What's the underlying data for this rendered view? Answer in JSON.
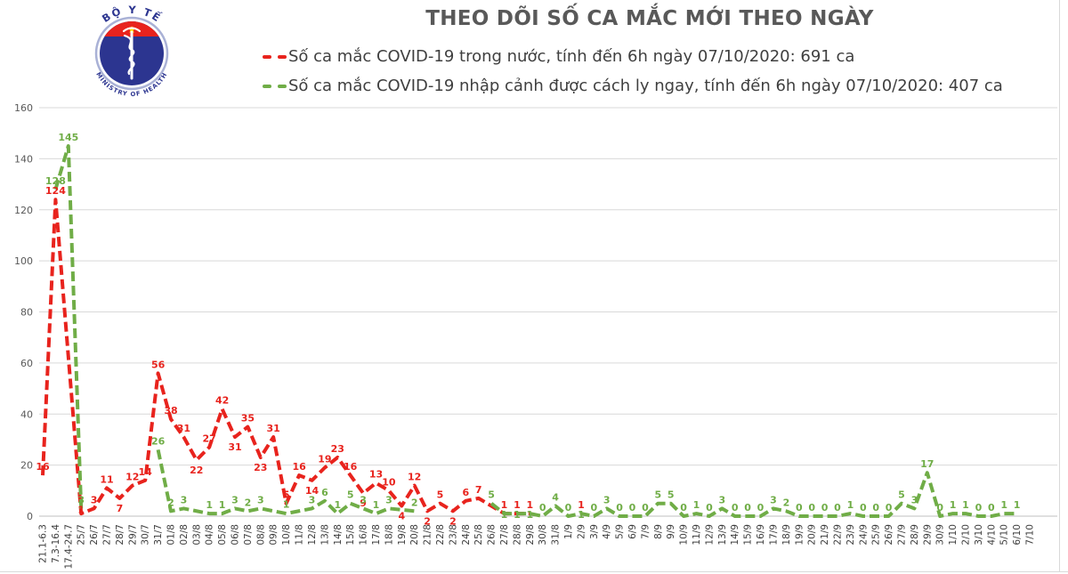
{
  "logo": {
    "top_text": "BỘ Y TẾ",
    "bottom_text": "MINISTRY OF HEALTH",
    "disc_color": "#2c3590",
    "band_color": "#e8231d",
    "star_color": "#ffde00"
  },
  "legend": {
    "items": [
      {
        "label": "Số ca mắc COVID-19 trong nước, tính đến 6h ngày 07/10/2020: 691 ca",
        "color": "#e8231d"
      },
      {
        "label": "Số ca mắc COVID-19 nhập cảnh được cách ly ngay, tính đến 6h ngày 07/10/2020: 407 ca",
        "color": "#70ad47"
      }
    ]
  },
  "chart_data": {
    "type": "line",
    "title": "THEO DÕI SỐ CA MẮC MỚI THEO NGÀY",
    "xlabel": "",
    "ylabel": "",
    "ylim": [
      0,
      160
    ],
    "y_ticks": [
      0,
      20,
      40,
      60,
      80,
      100,
      120,
      140,
      160
    ],
    "grid": true,
    "legend_position": "top-left",
    "line_style": "dashed",
    "categories": [
      "21.1-6.3",
      "7.3-16.4",
      "17.4-24.7",
      "25/7",
      "26/7",
      "27/7",
      "28/7",
      "29/7",
      "30/7",
      "31/7",
      "01/8",
      "02/8",
      "03/8",
      "04/8",
      "05/8",
      "06/8",
      "07/8",
      "08/8",
      "09/8",
      "10/8",
      "11/8",
      "12/8",
      "13/8",
      "14/8",
      "15/8",
      "16/8",
      "17/8",
      "18/8",
      "19/8",
      "20/8",
      "21/8",
      "22/8",
      "23/8",
      "24/8",
      "25/8",
      "26/8",
      "27/8",
      "28/8",
      "29/8",
      "30/8",
      "31/8",
      "1/9",
      "2/9",
      "3/9",
      "4/9",
      "5/9",
      "6/9",
      "7/9",
      "8/9",
      "9/9",
      "10/9",
      "11/9",
      "12/9",
      "13/9",
      "14/9",
      "15/9",
      "16/9",
      "17/9",
      "18/9",
      "19/9",
      "20/9",
      "21/9",
      "22/9",
      "23/9",
      "24/9",
      "25/9",
      "26/9",
      "27/9",
      "28/9",
      "29/9",
      "30/9",
      "1/10",
      "2/10",
      "3/10",
      "4/10",
      "5/10",
      "6/10",
      "7/10"
    ],
    "series": [
      {
        "id": "domestic",
        "name": "Số ca mắc COVID-19 trong nước",
        "total_label": "691 ca",
        "color": "#e8231d",
        "values": [
          16,
          124,
          null,
          1,
          3,
          11,
          7,
          12,
          14,
          56,
          38,
          31,
          22,
          27,
          42,
          31,
          35,
          23,
          31,
          5,
          16,
          14,
          19,
          23,
          16,
          9,
          13,
          10,
          4,
          12,
          2,
          5,
          2,
          6,
          7,
          null,
          1,
          1,
          1,
          null,
          null,
          null,
          1,
          null,
          null,
          null,
          null,
          null,
          null,
          null,
          null,
          null,
          null,
          null,
          null,
          null,
          null,
          null,
          null,
          null,
          null,
          null,
          null,
          null,
          null,
          null,
          null,
          null,
          null,
          null,
          null,
          null,
          null,
          null,
          null,
          null,
          null,
          null
        ]
      },
      {
        "id": "imported",
        "name": "Số ca mắc COVID-19 nhập cảnh được cách ly ngay",
        "total_label": "407 ca",
        "color": "#70ad47",
        "values": [
          null,
          128,
          145,
          3,
          null,
          null,
          null,
          null,
          null,
          26,
          2,
          3,
          null,
          1,
          1,
          3,
          2,
          3,
          null,
          1,
          null,
          3,
          6,
          1,
          5,
          3,
          1,
          3,
          null,
          2,
          null,
          null,
          null,
          null,
          null,
          5,
          1,
          1,
          1,
          0,
          4,
          0,
          1,
          0,
          3,
          0,
          0,
          0,
          5,
          5,
          0,
          1,
          0,
          3,
          0,
          0,
          0,
          3,
          2,
          0,
          0,
          0,
          0,
          1,
          0,
          0,
          0,
          5,
          3,
          17,
          0,
          1,
          1,
          0,
          0,
          1,
          1,
          null
        ]
      }
    ],
    "colors": {
      "grid": "#d9d9d9",
      "axis_line": "#bfbfbf",
      "axis_text": "#595959",
      "tick_text": "#3d3d3d",
      "border": "#d9d9d9",
      "title": "#595959",
      "background": "#ffffff"
    }
  }
}
